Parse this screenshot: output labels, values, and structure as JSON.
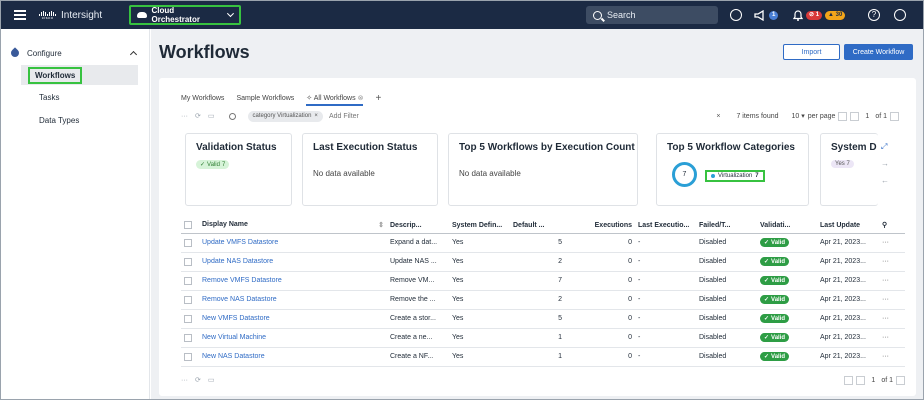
{
  "topbar": {
    "brand": "cisco",
    "app_name": "Intersight",
    "context": "Cloud Orchestrator",
    "search_placeholder": "Search",
    "alerts_count": "1",
    "errors_count": "1",
    "warnings_count": "30",
    "icons": [
      "menu-icon",
      "cloud-icon",
      "search-icon",
      "check-circle-icon",
      "megaphone-icon",
      "bell-icon",
      "help-icon",
      "user-icon"
    ]
  },
  "sidebar": {
    "section": "Configure",
    "items": [
      {
        "label": "Workflows"
      },
      {
        "label": "Tasks"
      },
      {
        "label": "Data Types"
      }
    ]
  },
  "main": {
    "title": "Workflows",
    "import_label": "Import",
    "create_label": "Create Workflow",
    "tabs": [
      "My Workflows",
      "Sample Workflows",
      "All Workflows"
    ],
    "filter_chip": "category Virtualization",
    "add_filter": "Add Filter",
    "items_found": "7 items found",
    "per_page_value": "10",
    "per_page_label": "per page",
    "page": "1",
    "of_pages": "of 1"
  },
  "widgets": {
    "validation_title": "Validation Status",
    "validation_pill": "Valid",
    "validation_count": "7",
    "last_exec_title": "Last Execution Status",
    "last_exec_text": "No data available",
    "top5_exec_title": "Top 5 Workflows by Execution Count",
    "top5_exec_text": "No data available",
    "top5_cat_title": "Top 5 Workflow Categories",
    "donut_value": "7",
    "legend_label": "Virtualization",
    "legend_value": "7",
    "system_title": "System D",
    "system_pill": "Yes 7"
  },
  "table": {
    "headers": [
      "Display Name",
      "Descrip...",
      "System Defin...",
      "Default ...",
      "Executions",
      "Last Executio...",
      "Failed/T...",
      "Validati...",
      "Last Update"
    ],
    "rows": [
      {
        "name": "Update VMFS Datastore",
        "desc": "Expand a dat...",
        "system": "Yes",
        "default": "5",
        "exec": "0",
        "last": "-",
        "failed": "Disabled",
        "valid": "Valid",
        "update": "Apr 21, 2023..."
      },
      {
        "name": "Update NAS Datastore",
        "desc": "Update NAS ...",
        "system": "Yes",
        "default": "2",
        "exec": "0",
        "last": "-",
        "failed": "Disabled",
        "valid": "Valid",
        "update": "Apr 21, 2023..."
      },
      {
        "name": "Remove VMFS Datastore",
        "desc": "Remove VM...",
        "system": "Yes",
        "default": "7",
        "exec": "0",
        "last": "-",
        "failed": "Disabled",
        "valid": "Valid",
        "update": "Apr 21, 2023..."
      },
      {
        "name": "Remove NAS Datastore",
        "desc": "Remove the ...",
        "system": "Yes",
        "default": "2",
        "exec": "0",
        "last": "-",
        "failed": "Disabled",
        "valid": "Valid",
        "update": "Apr 21, 2023..."
      },
      {
        "name": "New VMFS Datastore",
        "desc": "Create a stor...",
        "system": "Yes",
        "default": "5",
        "exec": "0",
        "last": "-",
        "failed": "Disabled",
        "valid": "Valid",
        "update": "Apr 21, 2023..."
      },
      {
        "name": "New Virtual Machine",
        "desc": "Create a ne...",
        "system": "Yes",
        "default": "1",
        "exec": "0",
        "last": "-",
        "failed": "Disabled",
        "valid": "Valid",
        "update": "Apr 21, 2023..."
      },
      {
        "name": "New NAS Datastore",
        "desc": "Create a NF...",
        "system": "Yes",
        "default": "1",
        "exec": "0",
        "last": "-",
        "failed": "Disabled",
        "valid": "Valid",
        "update": "Apr 21, 2023..."
      }
    ]
  },
  "footer": {
    "page": "1",
    "of_pages": "of 1"
  },
  "colors": {
    "topbar": "#1b2a44",
    "accent": "#2f6bc5",
    "highlight": "#37c240",
    "valid": "#2e9d45"
  }
}
